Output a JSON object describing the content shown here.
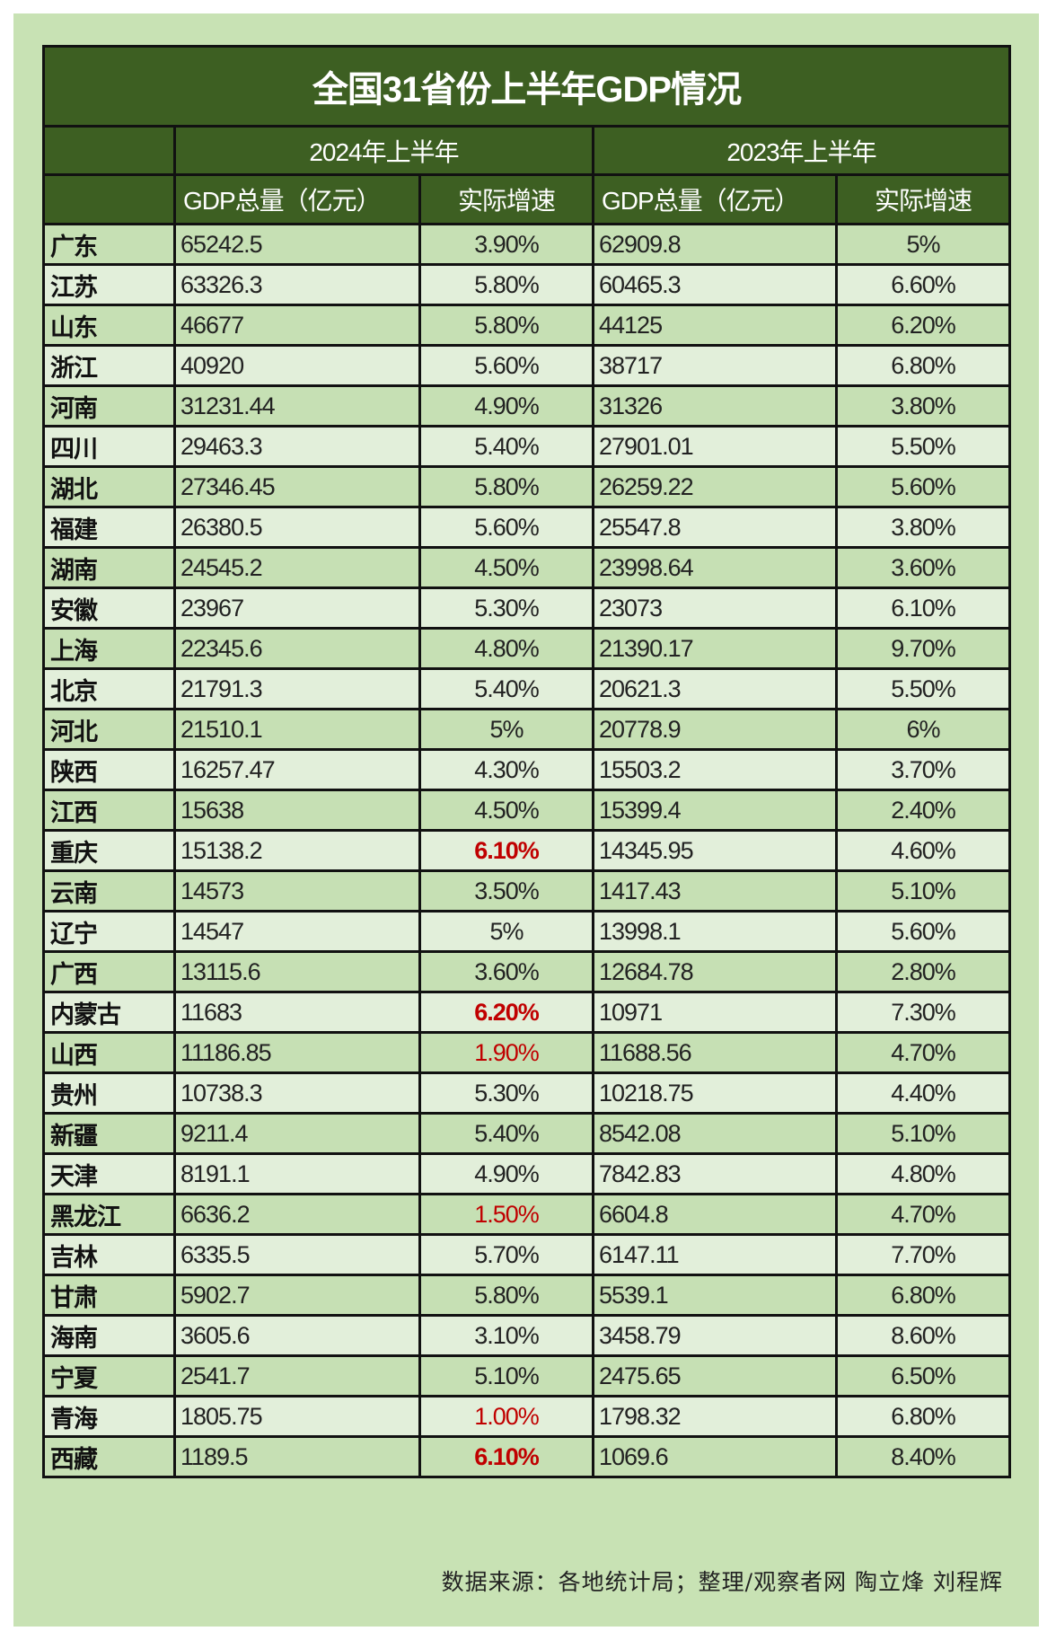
{
  "title": "全国31省份上半年GDP情况",
  "header": {
    "period_2024": "2024年上半年",
    "period_2023": "2023年上半年",
    "gdp_label": "GDP总量（亿元）",
    "growth_label": "实际增速"
  },
  "colors": {
    "header_bg": "#3d5f22",
    "row_dark": "#c6e0b4",
    "row_light": "#e2efda",
    "highlight_red": "#c00000"
  },
  "rows": [
    {
      "province": "广东",
      "gdp_2024": "65242.5",
      "growth_2024": "3.90%",
      "gdp_2023": "62909.8",
      "growth_2023": "5%"
    },
    {
      "province": "江苏",
      "gdp_2024": "63326.3",
      "growth_2024": "5.80%",
      "gdp_2023": "60465.3",
      "growth_2023": "6.60%"
    },
    {
      "province": "山东",
      "gdp_2024": "46677",
      "growth_2024": "5.80%",
      "gdp_2023": "44125",
      "growth_2023": "6.20%"
    },
    {
      "province": "浙江",
      "gdp_2024": "40920",
      "growth_2024": "5.60%",
      "gdp_2023": "38717",
      "growth_2023": "6.80%"
    },
    {
      "province": "河南",
      "gdp_2024": "31231.44",
      "growth_2024": "4.90%",
      "gdp_2023": "31326",
      "growth_2023": "3.80%"
    },
    {
      "province": "四川",
      "gdp_2024": "29463.3",
      "growth_2024": "5.40%",
      "gdp_2023": "27901.01",
      "growth_2023": "5.50%"
    },
    {
      "province": "湖北",
      "gdp_2024": "27346.45",
      "growth_2024": "5.80%",
      "gdp_2023": "26259.22",
      "growth_2023": "5.60%"
    },
    {
      "province": "福建",
      "gdp_2024": "26380.5",
      "growth_2024": "5.60%",
      "gdp_2023": "25547.8",
      "growth_2023": "3.80%"
    },
    {
      "province": "湖南",
      "gdp_2024": "24545.2",
      "growth_2024": "4.50%",
      "gdp_2023": "23998.64",
      "growth_2023": "3.60%"
    },
    {
      "province": "安徽",
      "gdp_2024": "23967",
      "growth_2024": "5.30%",
      "gdp_2023": "23073",
      "growth_2023": "6.10%"
    },
    {
      "province": "上海",
      "gdp_2024": "22345.6",
      "growth_2024": "4.80%",
      "gdp_2023": "21390.17",
      "growth_2023": "9.70%"
    },
    {
      "province": "北京",
      "gdp_2024": "21791.3",
      "growth_2024": "5.40%",
      "gdp_2023": "20621.3",
      "growth_2023": "5.50%"
    },
    {
      "province": "河北",
      "gdp_2024": "21510.1",
      "growth_2024": "5%",
      "gdp_2023": "20778.9",
      "growth_2023": "6%"
    },
    {
      "province": "陕西",
      "gdp_2024": "16257.47",
      "growth_2024": "4.30%",
      "gdp_2023": "15503.2",
      "growth_2023": "3.70%"
    },
    {
      "province": "江西",
      "gdp_2024": "15638",
      "growth_2024": "4.50%",
      "gdp_2023": "15399.4",
      "growth_2023": "2.40%"
    },
    {
      "province": "重庆",
      "gdp_2024": "15138.2",
      "growth_2024": "6.10%",
      "growth_2024_style": "red-bold",
      "gdp_2023": "14345.95",
      "growth_2023": "4.60%"
    },
    {
      "province": "云南",
      "gdp_2024": "14573",
      "growth_2024": "3.50%",
      "gdp_2023": "1417.43",
      "growth_2023": "5.10%"
    },
    {
      "province": "辽宁",
      "gdp_2024": "14547",
      "growth_2024": "5%",
      "gdp_2023": "13998.1",
      "growth_2023": "5.60%"
    },
    {
      "province": "广西",
      "gdp_2024": "13115.6",
      "growth_2024": "3.60%",
      "gdp_2023": "12684.78",
      "growth_2023": "2.80%"
    },
    {
      "province": "内蒙古",
      "gdp_2024": "11683",
      "growth_2024": "6.20%",
      "growth_2024_style": "red-bold",
      "gdp_2023": "10971",
      "growth_2023": "7.30%"
    },
    {
      "province": "山西",
      "gdp_2024": "11186.85",
      "growth_2024": "1.90%",
      "growth_2024_style": "red",
      "gdp_2023": "11688.56",
      "growth_2023": "4.70%"
    },
    {
      "province": "贵州",
      "gdp_2024": "10738.3",
      "growth_2024": "5.30%",
      "gdp_2023": "10218.75",
      "growth_2023": "4.40%"
    },
    {
      "province": "新疆",
      "gdp_2024": "9211.4",
      "growth_2024": "5.40%",
      "gdp_2023": "8542.08",
      "growth_2023": "5.10%"
    },
    {
      "province": "天津",
      "gdp_2024": "8191.1",
      "growth_2024": "4.90%",
      "gdp_2023": "7842.83",
      "growth_2023": "4.80%"
    },
    {
      "province": "黑龙江",
      "gdp_2024": "6636.2",
      "growth_2024": "1.50%",
      "growth_2024_style": "red",
      "gdp_2023": "6604.8",
      "growth_2023": "4.70%"
    },
    {
      "province": "吉林",
      "gdp_2024": "6335.5",
      "growth_2024": "5.70%",
      "gdp_2023": "6147.11",
      "growth_2023": "7.70%"
    },
    {
      "province": "甘肃",
      "gdp_2024": "5902.7",
      "growth_2024": "5.80%",
      "gdp_2023": "5539.1",
      "growth_2023": "6.80%"
    },
    {
      "province": "海南",
      "gdp_2024": "3605.6",
      "growth_2024": "3.10%",
      "gdp_2023": "3458.79",
      "growth_2023": "8.60%"
    },
    {
      "province": "宁夏",
      "gdp_2024": "2541.7",
      "growth_2024": "5.10%",
      "gdp_2023": "2475.65",
      "growth_2023": "6.50%"
    },
    {
      "province": "青海",
      "gdp_2024": "1805.75",
      "growth_2024": "1.00%",
      "growth_2024_style": "red",
      "gdp_2023": "1798.32",
      "growth_2023": "6.80%"
    },
    {
      "province": "西藏",
      "gdp_2024": "1189.5",
      "growth_2024": "6.10%",
      "growth_2024_style": "red-bold",
      "gdp_2023": "1069.6",
      "growth_2023": "8.40%"
    }
  ],
  "footer": "数据来源：各地统计局；整理/观察者网 陶立烽 刘程辉"
}
